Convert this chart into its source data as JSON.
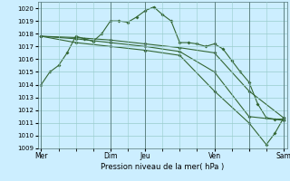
{
  "xlabel": "Pression niveau de la mer( hPa )",
  "ylim": [
    1009,
    1020.5
  ],
  "yticks": [
    1009,
    1010,
    1011,
    1012,
    1013,
    1014,
    1015,
    1016,
    1017,
    1018,
    1019,
    1020
  ],
  "bg_color": "#cceeff",
  "grid_color": "#99cccc",
  "line_color": "#336633",
  "line1_x": [
    0,
    0.5,
    1,
    1.5,
    2,
    2.5,
    3,
    3.5,
    4,
    4.5,
    5,
    5.5,
    6,
    6.5,
    7,
    7.5,
    8,
    8.5,
    9,
    9.5,
    10,
    10.5,
    11,
    11.5,
    12,
    12.5,
    13,
    13.5,
    14
  ],
  "line1_y": [
    1014.0,
    1015.0,
    1015.5,
    1016.5,
    1017.8,
    1017.6,
    1017.4,
    1018.0,
    1019.0,
    1019.0,
    1018.9,
    1019.3,
    1019.8,
    1020.1,
    1019.5,
    1019.0,
    1017.3,
    1017.3,
    1017.2,
    1017.0,
    1017.2,
    1016.8,
    1015.9,
    1015.0,
    1014.2,
    1012.5,
    1011.4,
    1011.3,
    1011.3
  ],
  "line2_x": [
    0,
    2,
    4,
    6,
    8,
    10,
    12,
    14
  ],
  "line2_y": [
    1017.8,
    1017.7,
    1017.5,
    1017.2,
    1016.9,
    1016.5,
    1013.5,
    1011.4
  ],
  "line3_x": [
    0,
    2,
    4,
    6,
    8,
    10,
    12,
    14
  ],
  "line3_y": [
    1017.8,
    1017.6,
    1017.3,
    1017.0,
    1016.6,
    1015.0,
    1011.5,
    1011.2
  ],
  "line4_x": [
    0,
    2,
    4,
    6,
    8,
    10,
    12,
    13,
    13.5,
    14
  ],
  "line4_y": [
    1017.8,
    1017.3,
    1017.0,
    1016.7,
    1016.3,
    1013.5,
    1011.0,
    1009.3,
    1010.2,
    1011.4
  ],
  "vline_x": [
    0,
    4,
    6,
    10,
    12,
    14
  ],
  "vline_labels": [
    "Mer",
    "Dim",
    "Jeu",
    "Ven",
    "",
    "Sam"
  ],
  "xlim": [
    -0.2,
    14.2
  ]
}
